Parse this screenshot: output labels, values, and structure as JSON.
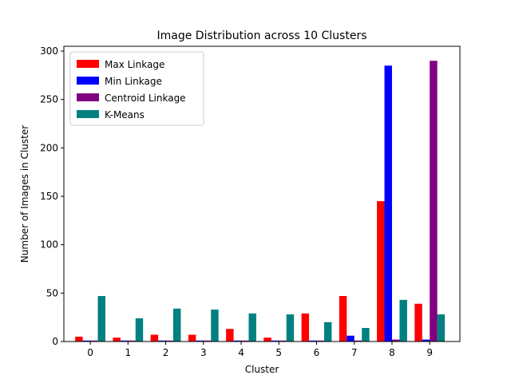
{
  "chart_data": {
    "type": "bar",
    "title": "Image Distribution across 10 Clusters",
    "xlabel": "Cluster",
    "ylabel": "Number of Images in Cluster",
    "categories": [
      "0",
      "1",
      "2",
      "3",
      "4",
      "5",
      "6",
      "7",
      "8",
      "9"
    ],
    "ylim": [
      0,
      305
    ],
    "yticks": [
      0,
      50,
      100,
      150,
      200,
      250,
      300
    ],
    "legend_position": "top-left",
    "series": [
      {
        "name": "Max Linkage",
        "color": "#ff0000",
        "values": [
          5,
          4,
          7,
          7,
          13,
          4,
          29,
          47,
          145,
          39
        ]
      },
      {
        "name": "Min Linkage",
        "color": "#0000ff",
        "values": [
          1,
          1,
          1,
          1,
          1,
          1,
          1,
          6,
          285,
          2
        ]
      },
      {
        "name": "Centroid Linkage",
        "color": "#800080",
        "values": [
          1,
          1,
          1,
          1,
          1,
          1,
          1,
          1,
          2,
          290
        ]
      },
      {
        "name": "K-Means",
        "color": "#008080",
        "values": [
          47,
          24,
          34,
          33,
          29,
          28,
          20,
          14,
          43,
          28
        ]
      }
    ]
  }
}
